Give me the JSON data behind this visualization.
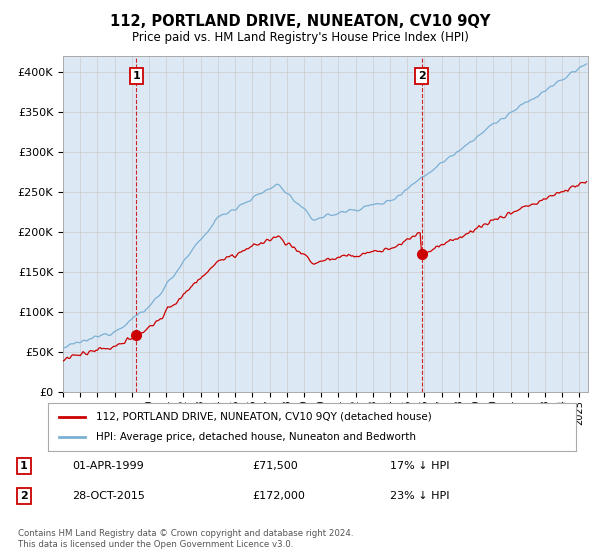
{
  "title": "112, PORTLAND DRIVE, NUNEATON, CV10 9QY",
  "subtitle": "Price paid vs. HM Land Registry's House Price Index (HPI)",
  "ytick_values": [
    0,
    50000,
    100000,
    150000,
    200000,
    250000,
    300000,
    350000,
    400000
  ],
  "ylim": [
    0,
    420000
  ],
  "xlim_start": 1995,
  "xlim_end": 2025.5,
  "price_paid": [
    {
      "date": 1999.25,
      "price": 71500,
      "label": "1"
    },
    {
      "date": 2015.83,
      "price": 172000,
      "label": "2"
    }
  ],
  "red_line_color": "#cc0000",
  "blue_line_color": "#7bafd4",
  "fill_color": "#dce9f5",
  "dashed_line_color": "#cc0000",
  "legend_red_label": "112, PORTLAND DRIVE, NUNEATON, CV10 9QY (detached house)",
  "legend_blue_label": "HPI: Average price, detached house, Nuneaton and Bedworth",
  "annotation1_date": "01-APR-1999",
  "annotation1_price": "£71,500",
  "annotation1_hpi": "17% ↓ HPI",
  "annotation2_date": "28-OCT-2015",
  "annotation2_price": "£172,000",
  "annotation2_hpi": "23% ↓ HPI",
  "footer_text": "Contains HM Land Registry data © Crown copyright and database right 2024.\nThis data is licensed under the Open Government Licence v3.0.",
  "background_color": "#ffffff",
  "grid_color": "#cccccc"
}
